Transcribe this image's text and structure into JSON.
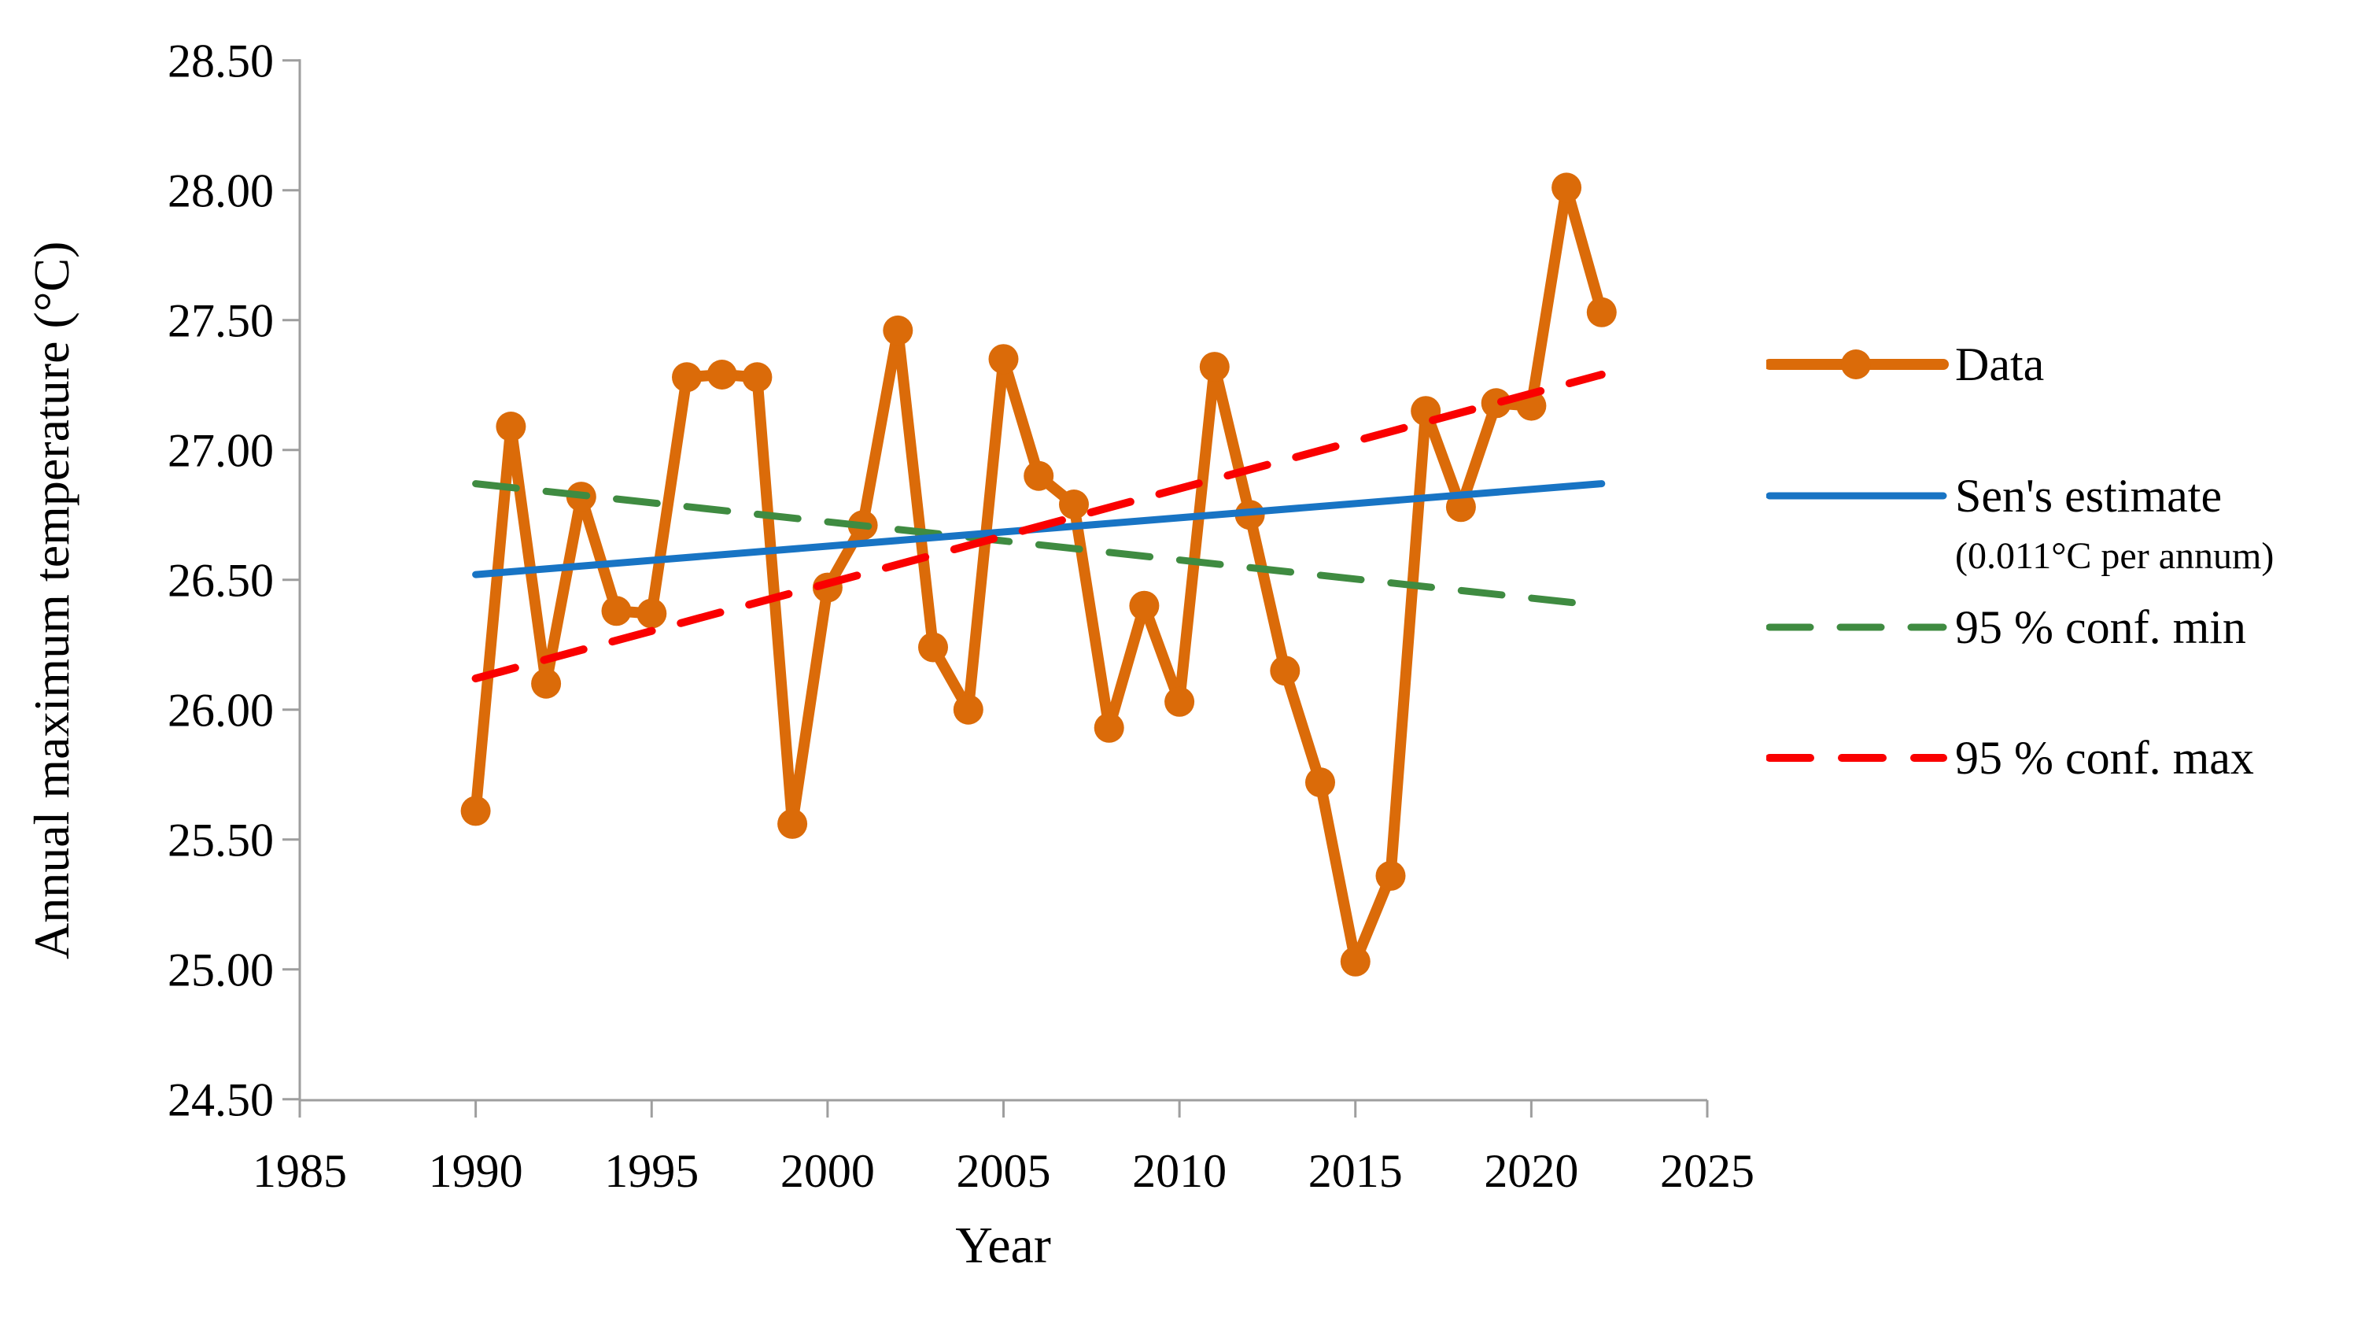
{
  "figure": {
    "background": "#ffffff"
  },
  "legend": {
    "data_label": "Data",
    "sens_label": "Sen's estimate",
    "sens_annotation": "(0.011°C per annum)",
    "conf_min_label": "95 % conf. min",
    "conf_max_label": "95 % conf. max"
  },
  "chart_data": {
    "type": "line",
    "title": "",
    "xlabel": "Year",
    "ylabel": "Annual maximum temperature (°C)",
    "x_range": [
      1985,
      2025
    ],
    "y_range": [
      24.5,
      28.5
    ],
    "x_tick_step": 5,
    "y_tick_step": 0.5,
    "x_ticks": [
      "1985",
      "1990",
      "1995",
      "2000",
      "2005",
      "2010",
      "2015",
      "2020",
      "2025"
    ],
    "y_ticks": [
      "28.50",
      "28.00",
      "27.50",
      "27.00",
      "26.50",
      "26.00",
      "25.50",
      "25.00",
      "24.50"
    ],
    "grid": false,
    "legend_position": "right-outside",
    "axis_color": "#9E9E9E",
    "text_color": "#000000",
    "series": [
      {
        "name": "Data",
        "style": "solid-with-markers",
        "color": "#DB6B09",
        "x": [
          1990,
          1991,
          1992,
          1993,
          1994,
          1995,
          1996,
          1997,
          1998,
          1999,
          2000,
          2001,
          2002,
          2003,
          2004,
          2005,
          2006,
          2007,
          2008,
          2009,
          2010,
          2011,
          2012,
          2013,
          2014,
          2015,
          2016,
          2017,
          2018,
          2019,
          2020,
          2021,
          2022
        ],
        "values": [
          25.61,
          27.09,
          26.1,
          26.82,
          26.38,
          26.37,
          27.28,
          27.29,
          27.28,
          25.56,
          26.47,
          26.71,
          27.46,
          26.24,
          26.0,
          27.35,
          26.9,
          26.79,
          25.93,
          26.4,
          26.03,
          27.32,
          26.75,
          26.15,
          25.72,
          25.03,
          25.36,
          27.15,
          26.78,
          27.18,
          27.17,
          28.01,
          27.53
        ]
      },
      {
        "name": "Sen's estimate",
        "annotation": "(0.011°C per annum)",
        "style": "solid",
        "color": "#1874C4",
        "x": [
          1990,
          2022
        ],
        "values": [
          26.52,
          26.87
        ]
      },
      {
        "name": "95 % conf. min",
        "style": "dashed",
        "color": "#3F8B41",
        "x": [
          1990,
          2022
        ],
        "values": [
          26.87,
          26.4
        ]
      },
      {
        "name": "95 % conf. max",
        "style": "dashed",
        "color": "#FA0000",
        "x": [
          1990,
          2022
        ],
        "values": [
          26.12,
          27.29
        ]
      }
    ]
  }
}
